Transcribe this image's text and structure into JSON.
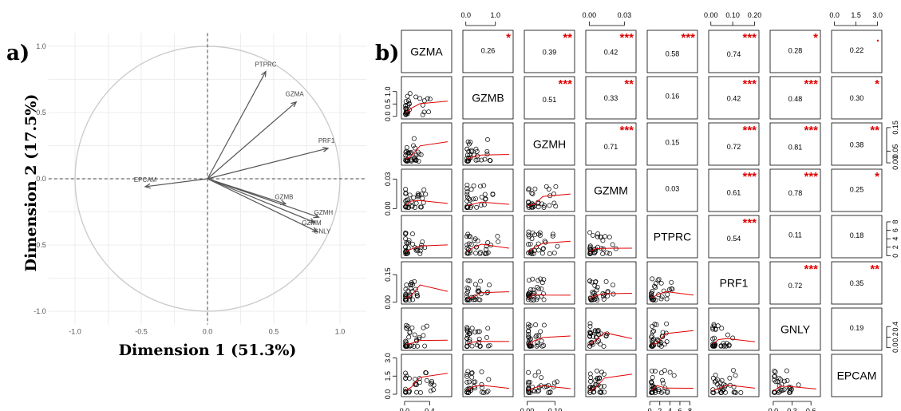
{
  "panel_labels": {
    "a": "a)",
    "b": "b)"
  },
  "chart_data": [
    {
      "type": "scatter",
      "subtype": "pca-correlation-circle",
      "title": "",
      "xlabel": "Dimension 1 (51.3%)",
      "ylabel": "Dimension 2 (17.5%)",
      "xlim": [
        -1.0,
        1.0
      ],
      "ylim": [
        -1.0,
        1.0
      ],
      "xticks": [
        "-1.0",
        "-0.5",
        "0.0",
        "0.5",
        "1.0"
      ],
      "yticks": [
        "-1.0",
        "-0.5",
        "0.0",
        "0.5",
        "1.0"
      ],
      "grid": true,
      "arrow_color": "#555555",
      "circle_color": "#cccccc",
      "vectors": [
        {
          "label": "PTPRC",
          "x": 0.44,
          "y": 0.81
        },
        {
          "label": "GZMA",
          "x": 0.67,
          "y": 0.58
        },
        {
          "label": "PRF1",
          "x": 0.91,
          "y": 0.23
        },
        {
          "label": "EPCAM",
          "x": -0.47,
          "y": -0.06
        },
        {
          "label": "GZMB",
          "x": 0.59,
          "y": -0.19
        },
        {
          "label": "GZMH",
          "x": 0.84,
          "y": -0.29
        },
        {
          "label": "GZMM",
          "x": 0.81,
          "y": -0.33
        },
        {
          "label": "GNLY",
          "x": 0.83,
          "y": -0.4
        }
      ]
    },
    {
      "type": "scatter",
      "subtype": "correlation-scatterplot-matrix",
      "variables": [
        "GZMA",
        "GZMB",
        "GZMH",
        "GZMM",
        "PTPRC",
        "PRF1",
        "GNLY",
        "EPCAM"
      ],
      "star_color": "#e00000",
      "smooth_color": "#e00000",
      "correlations": [
        {
          "i": 0,
          "j": 1,
          "r": "0.26",
          "stars": "*"
        },
        {
          "i": 0,
          "j": 2,
          "r": "0.39",
          "stars": "**"
        },
        {
          "i": 0,
          "j": 3,
          "r": "0.42",
          "stars": "***"
        },
        {
          "i": 0,
          "j": 4,
          "r": "0.58",
          "stars": "***"
        },
        {
          "i": 0,
          "j": 5,
          "r": "0.74",
          "stars": "***"
        },
        {
          "i": 0,
          "j": 6,
          "r": "0.28",
          "stars": "*"
        },
        {
          "i": 0,
          "j": 7,
          "r": "0.22",
          "stars": "."
        },
        {
          "i": 1,
          "j": 2,
          "r": "0.51",
          "stars": "***"
        },
        {
          "i": 1,
          "j": 3,
          "r": "0.33",
          "stars": "**"
        },
        {
          "i": 1,
          "j": 4,
          "r": "0.16",
          "stars": ""
        },
        {
          "i": 1,
          "j": 5,
          "r": "0.42",
          "stars": "***"
        },
        {
          "i": 1,
          "j": 6,
          "r": "0.48",
          "stars": "***"
        },
        {
          "i": 1,
          "j": 7,
          "r": "0.30",
          "stars": "*"
        },
        {
          "i": 2,
          "j": 3,
          "r": "0.71",
          "stars": "***"
        },
        {
          "i": 2,
          "j": 4,
          "r": "0.15",
          "stars": ""
        },
        {
          "i": 2,
          "j": 5,
          "r": "0.72",
          "stars": "***"
        },
        {
          "i": 2,
          "j": 6,
          "r": "0.81",
          "stars": "***"
        },
        {
          "i": 2,
          "j": 7,
          "r": "0.38",
          "stars": "**"
        },
        {
          "i": 3,
          "j": 4,
          "r": "0.03",
          "stars": ""
        },
        {
          "i": 3,
          "j": 5,
          "r": "0.61",
          "stars": "***"
        },
        {
          "i": 3,
          "j": 6,
          "r": "0.78",
          "stars": "***"
        },
        {
          "i": 3,
          "j": 7,
          "r": "0.25",
          "stars": "*"
        },
        {
          "i": 4,
          "j": 5,
          "r": "0.54",
          "stars": "***"
        },
        {
          "i": 4,
          "j": 6,
          "r": "0.11",
          "stars": ""
        },
        {
          "i": 4,
          "j": 7,
          "r": "0.18",
          "stars": ""
        },
        {
          "i": 5,
          "j": 6,
          "r": "0.72",
          "stars": "***"
        },
        {
          "i": 5,
          "j": 7,
          "r": "0.35",
          "stars": "**"
        },
        {
          "i": 6,
          "j": 7,
          "r": "0.19",
          "stars": ""
        }
      ],
      "axes": {
        "top": [
          {
            "col": 1,
            "lim": [
              -0.1,
              1.6
            ],
            "ticks": [
              0.0,
              1.0
            ],
            "labels": [
              "0.0",
              "1.0"
            ]
          },
          {
            "col": 3,
            "lim": [
              -0.003,
              0.04
            ],
            "ticks": [
              0.0,
              0.03
            ],
            "labels": [
              "0.00",
              "0.03"
            ]
          },
          {
            "col": 5,
            "lim": [
              -0.01,
              0.22
            ],
            "ticks": [
              0.0,
              0.1,
              0.2
            ],
            "labels": [
              "0.00",
              "0.10",
              "0.20"
            ]
          },
          {
            "col": 7,
            "lim": [
              -0.2,
              3.3
            ],
            "ticks": [
              0.0,
              1.5,
              3.0
            ],
            "labels": [
              "0.0",
              "1.5",
              "3.0"
            ]
          }
        ],
        "bottom": [
          {
            "col": 0,
            "lim": [
              -0.05,
              0.75
            ],
            "ticks": [
              0.0,
              0.4
            ],
            "labels": [
              "0.0",
              "0.4"
            ]
          },
          {
            "col": 2,
            "lim": [
              -0.01,
              0.17
            ],
            "ticks": [
              0.0,
              0.1
            ],
            "labels": [
              "0.00",
              "0.10"
            ]
          },
          {
            "col": 4,
            "lim": [
              -0.5,
              9.5
            ],
            "ticks": [
              0,
              2,
              4,
              6,
              8
            ],
            "labels": [
              "0",
              "2",
              "4",
              "6",
              "8"
            ]
          },
          {
            "col": 6,
            "lim": [
              -0.05,
              0.75
            ],
            "ticks": [
              0.0,
              0.3,
              0.6
            ],
            "labels": [
              "0.0",
              "0.3",
              "0.6"
            ]
          }
        ],
        "left": [
          {
            "row": 1,
            "lim": [
              -0.1,
              1.6
            ],
            "ticks": [
              0.0,
              0.5,
              1.0
            ],
            "labels": [
              "0.0",
              "0.5",
              "1.0"
            ]
          },
          {
            "row": 3,
            "lim": [
              -0.003,
              0.04
            ],
            "ticks": [
              0.0,
              0.03
            ],
            "labels": [
              "0.00",
              "0.03"
            ]
          },
          {
            "row": 5,
            "lim": [
              -0.01,
              0.22
            ],
            "ticks": [
              0.0,
              0.15
            ],
            "labels": [
              "0.00",
              "0.15"
            ]
          },
          {
            "row": 7,
            "lim": [
              -0.2,
              3.3
            ],
            "ticks": [
              0.0,
              1.5,
              3.0
            ],
            "labels": [
              "0.0",
              "1.5",
              "3.0"
            ]
          }
        ],
        "right": [
          {
            "row": 2,
            "lim": [
              -0.01,
              0.17
            ],
            "ticks": [
              0.0,
              0.05,
              0.15
            ],
            "labels": [
              "0.00",
              "0.05",
              "0.15"
            ]
          },
          {
            "row": 4,
            "lim": [
              -0.5,
              9.5
            ],
            "ticks": [
              0,
              2,
              4,
              6,
              8
            ],
            "labels": [
              "0",
              "2",
              "4",
              "6",
              "8"
            ]
          },
          {
            "row": 6,
            "lim": [
              -0.05,
              0.75
            ],
            "ticks": [
              0.0,
              0.2,
              0.4
            ],
            "labels": [
              "0.0",
              "0.2",
              "0.4"
            ]
          }
        ]
      }
    }
  ]
}
